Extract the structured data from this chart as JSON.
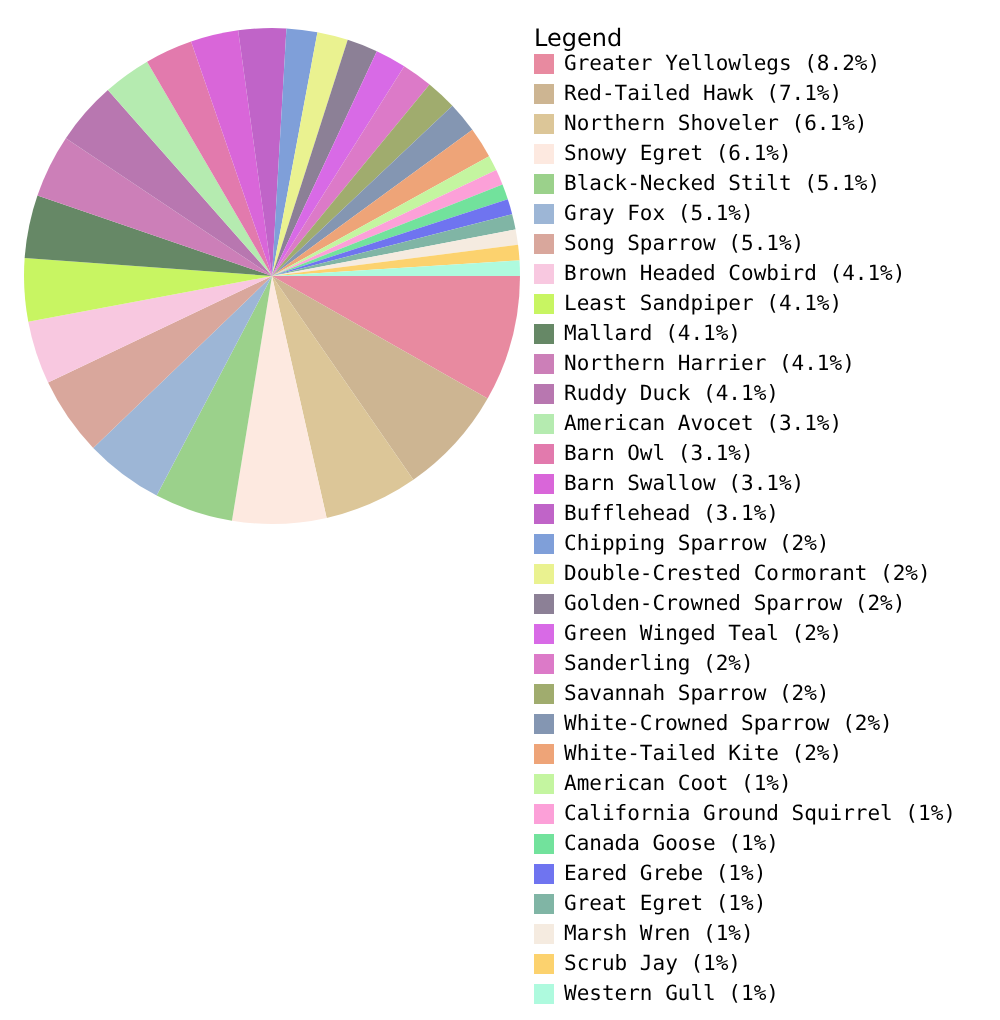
{
  "chart_data": {
    "type": "pie",
    "legend_title": "Legend",
    "legend": "right",
    "categories": [
      "Greater Yellowlegs (8.2%)",
      "Red-Tailed Hawk (7.1%)",
      "Northern Shoveler (6.1%)",
      "Snowy Egret (6.1%)",
      "Black-Necked Stilt (5.1%)",
      "Gray Fox (5.1%)",
      "Song Sparrow (5.1%)",
      "Brown Headed Cowbird (4.1%)",
      "Least Sandpiper (4.1%)",
      "Mallard (4.1%)",
      "Northern Harrier (4.1%)",
      "Ruddy Duck (4.1%)",
      "American Avocet (3.1%)",
      "Barn Owl (3.1%)",
      "Barn Swallow (3.1%)",
      "Bufflehead (3.1%)",
      "Chipping Sparrow (2%)",
      "Double-Crested Cormorant (2%)",
      "Golden-Crowned Sparrow (2%)",
      "Green Winged Teal (2%)",
      "Sanderling (2%)",
      "Savannah Sparrow (2%)",
      "White-Crowned Sparrow (2%)",
      "White-Tailed Kite (2%)",
      "American Coot (1%)",
      "California Ground Squirrel (1%)",
      "Canada Goose (1%)",
      "Eared Grebe (1%)",
      "Great Egret (1%)",
      "Marsh Wren (1%)",
      "Scrub Jay (1%)",
      "Western Gull (1%)"
    ],
    "values": [
      8.2,
      7.1,
      6.1,
      6.1,
      5.1,
      5.1,
      5.1,
      4.1,
      4.1,
      4.1,
      4.1,
      4.1,
      3.1,
      3.1,
      3.1,
      3.1,
      2,
      2,
      2,
      2,
      2,
      2,
      2,
      2,
      1,
      1,
      1,
      1,
      1,
      1,
      1,
      1
    ],
    "colors": [
      "#e88aa0",
      "#cdb592",
      "#dcc698",
      "#fde9e0",
      "#9bd18b",
      "#9db6d6",
      "#d9a79c",
      "#f8c8e0",
      "#c8f562",
      "#668866",
      "#cc7fb8",
      "#b877b0",
      "#b5ebb0",
      "#e27aad",
      "#d966d9",
      "#c064c8",
      "#7f9fd9",
      "#eaf290",
      "#8c8096",
      "#d86ae6",
      "#dc7ac8",
      "#a0ac6e",
      "#8496b2",
      "#eea478",
      "#c4f5a0",
      "#fca0d8",
      "#72e29c",
      "#6f74f0",
      "#80b5a5",
      "#f5ebe0",
      "#fcd26e",
      "#aefade"
    ]
  }
}
